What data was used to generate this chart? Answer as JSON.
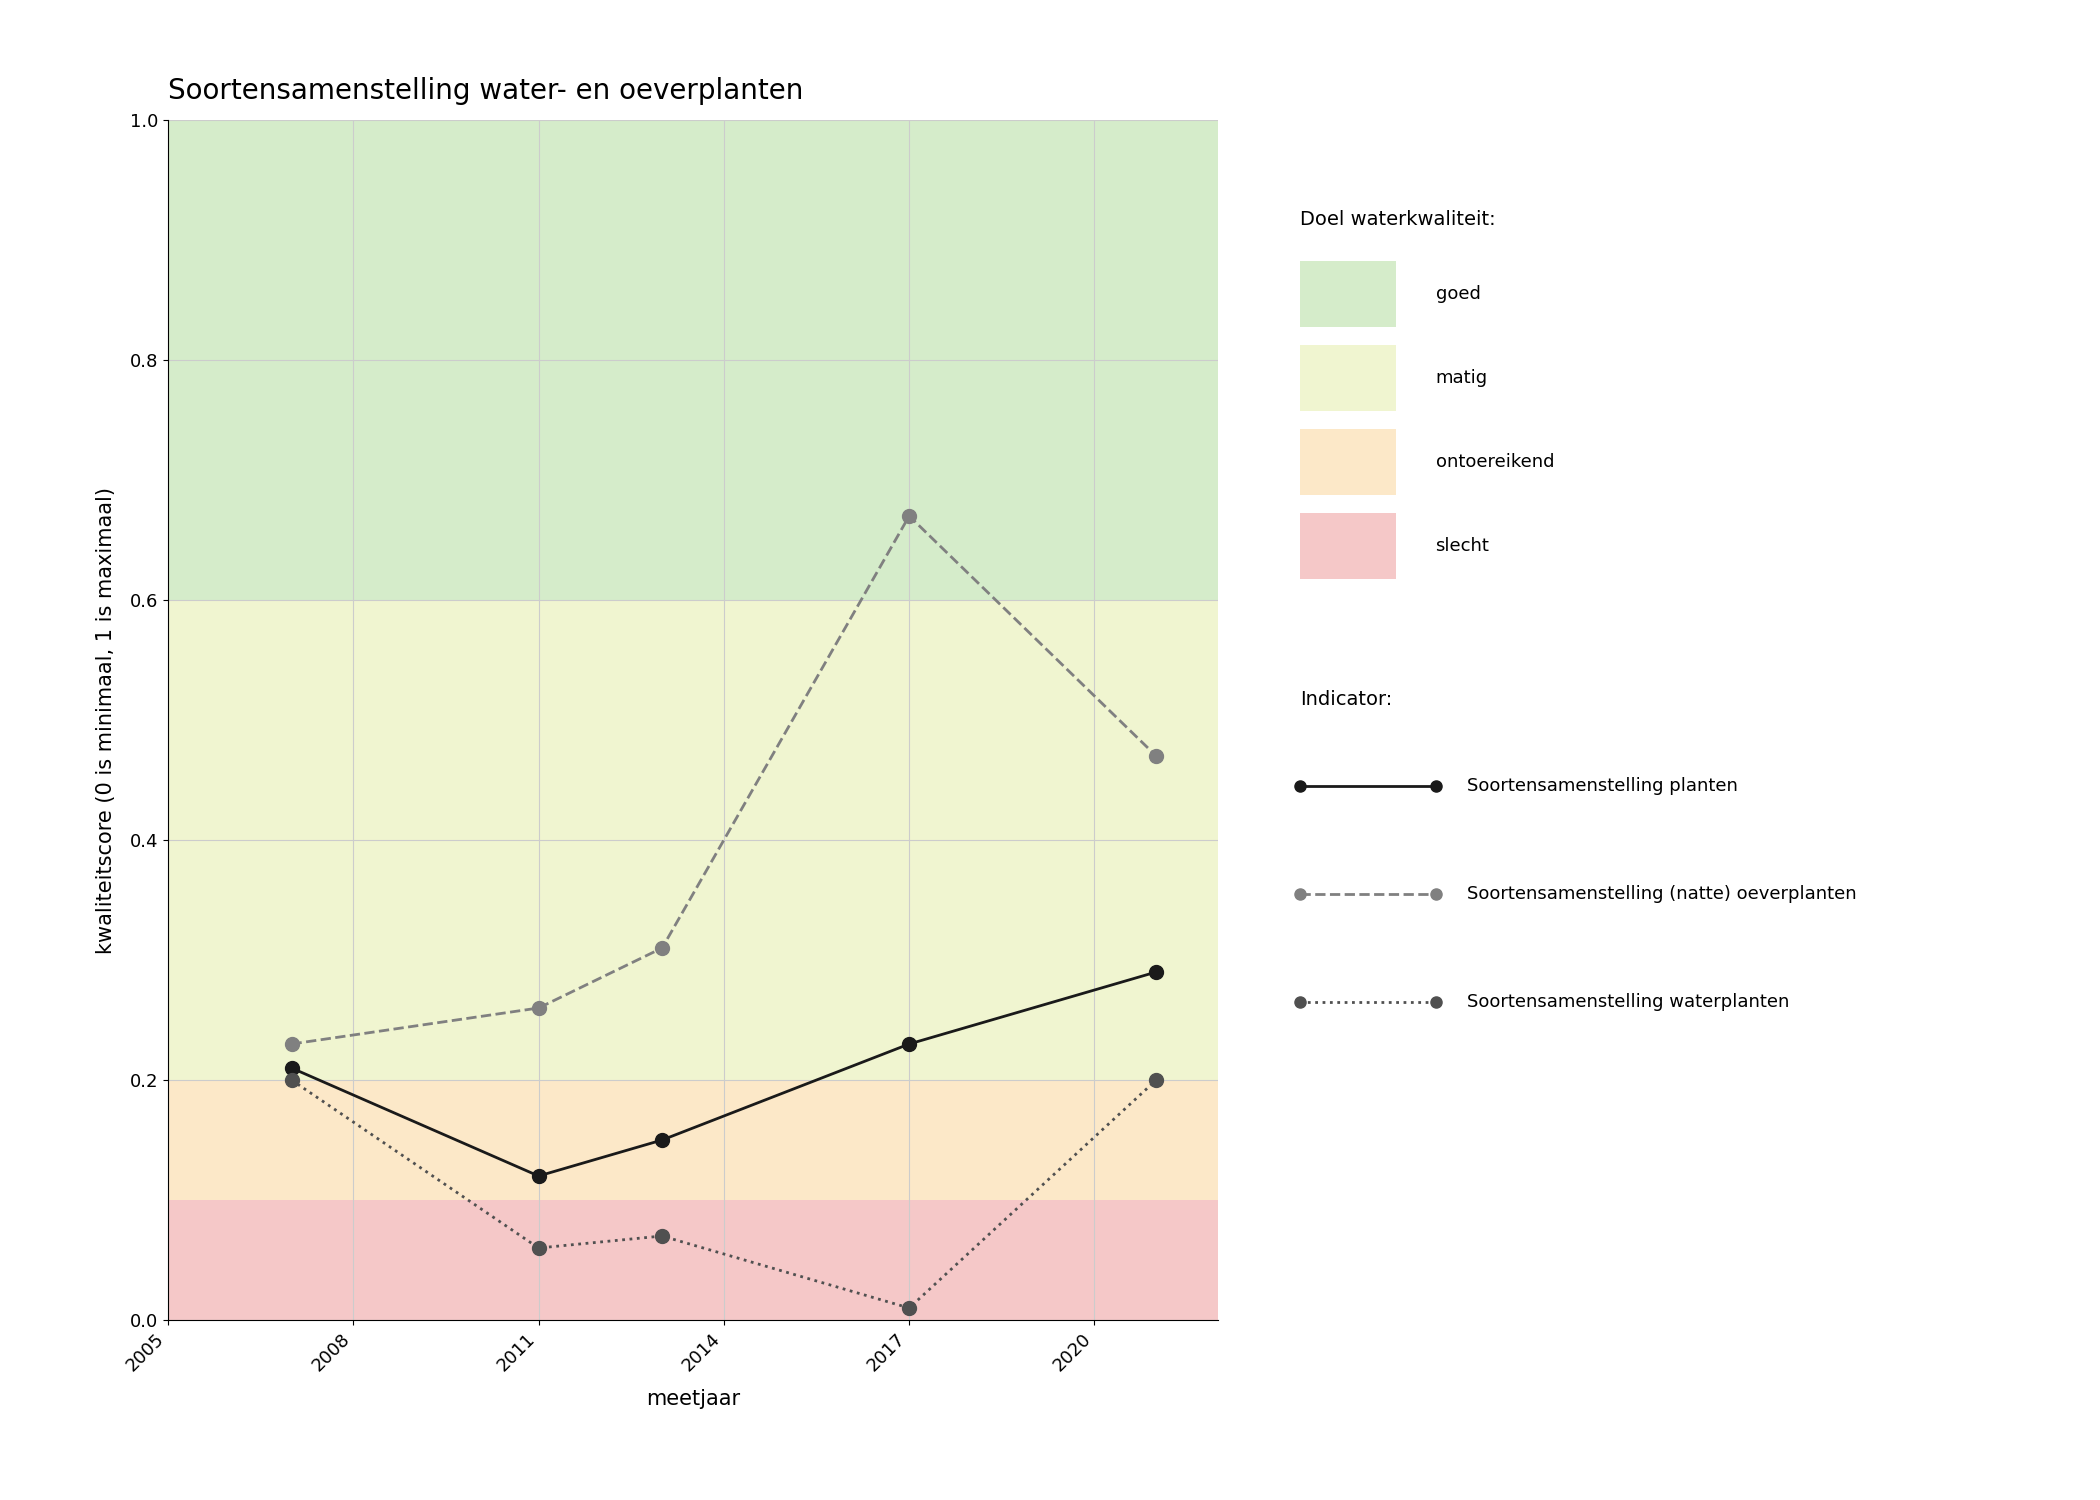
{
  "title": "Soortensamenstelling water- en oeverplanten",
  "xlabel": "meetjaar",
  "ylabel": "kwaliteitscore (0 is minimaal, 1 is maximaal)",
  "xlim": [
    2005,
    2022
  ],
  "ylim": [
    0.0,
    1.0
  ],
  "xticks": [
    2005,
    2008,
    2011,
    2014,
    2017,
    2020
  ],
  "yticks": [
    0.0,
    0.2,
    0.4,
    0.6,
    0.8,
    1.0
  ],
  "bg_zones": [
    {
      "ymin": 0.6,
      "ymax": 1.0,
      "color": "#d5ecca",
      "label": "goed"
    },
    {
      "ymin": 0.2,
      "ymax": 0.6,
      "color": "#f0f5d0",
      "label": "matig"
    },
    {
      "ymin": 0.1,
      "ymax": 0.2,
      "color": "#fce8c8",
      "label": "ontoereikend"
    },
    {
      "ymin": 0.0,
      "ymax": 0.1,
      "color": "#f5c8c8",
      "label": "slecht"
    }
  ],
  "series": [
    {
      "name": "Soortensamenstelling planten",
      "x": [
        2007,
        2011,
        2013,
        2017,
        2021
      ],
      "y": [
        0.21,
        0.12,
        0.15,
        0.23,
        0.29
      ],
      "color": "#1a1a1a",
      "linestyle": "solid",
      "linewidth": 2.0,
      "markersize": 10
    },
    {
      "name": "Soortensamenstelling (natte) oeverplanten",
      "x": [
        2007,
        2011,
        2013,
        2017,
        2021
      ],
      "y": [
        0.23,
        0.26,
        0.31,
        0.67,
        0.47
      ],
      "color": "#808080",
      "linestyle": "dashed",
      "linewidth": 2.0,
      "markersize": 10
    },
    {
      "name": "Soortensamenstelling waterplanten",
      "x": [
        2007,
        2011,
        2013,
        2017,
        2021
      ],
      "y": [
        0.2,
        0.06,
        0.07,
        0.01,
        0.2
      ],
      "color": "#505050",
      "linestyle": "dotted",
      "linewidth": 2.0,
      "markersize": 10
    }
  ],
  "legend_title_doel": "Doel waterkwaliteit:",
  "legend_title_indicator": "Indicator:",
  "grid_color": "#cccccc",
  "background_color": "#ffffff",
  "title_fontsize": 20,
  "axis_label_fontsize": 15,
  "tick_fontsize": 13,
  "legend_fontsize": 13
}
